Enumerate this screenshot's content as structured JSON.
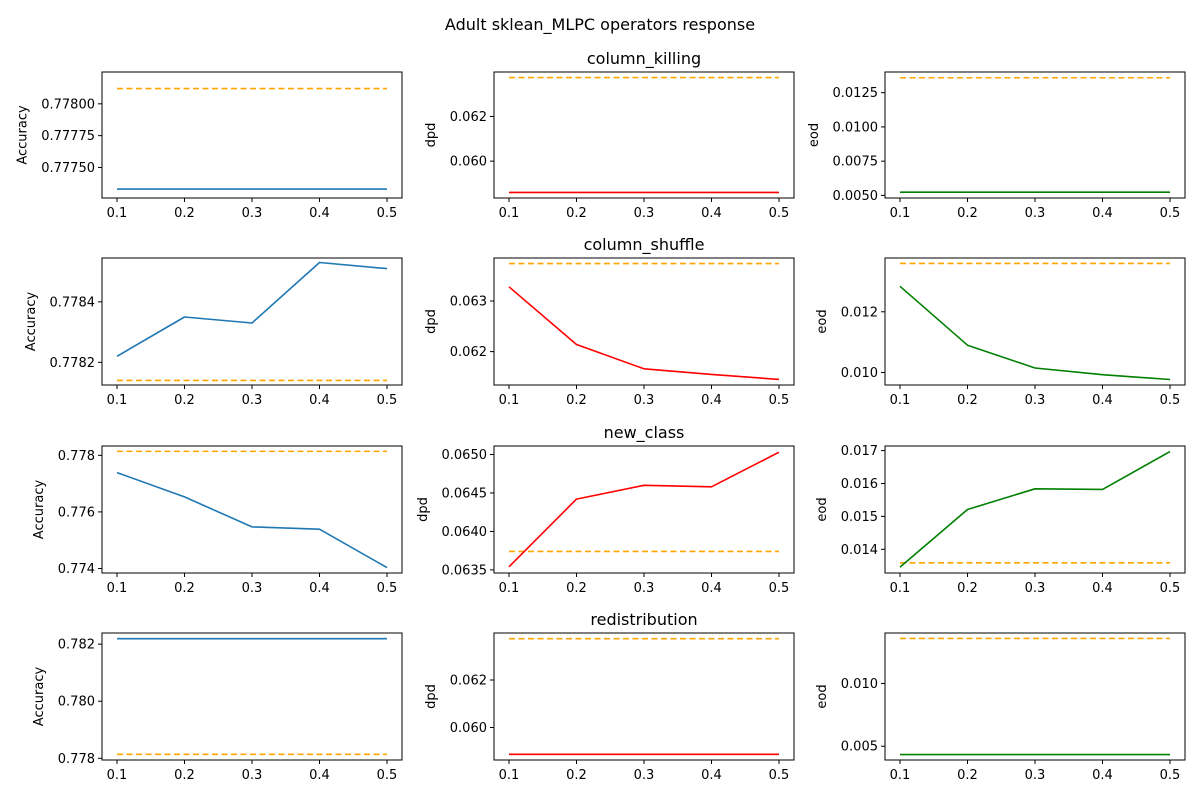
{
  "figure": {
    "title": "Adult sklean_MLPC operators response"
  },
  "colors": {
    "Accuracy": "#1f77b4",
    "dpd": "#ff0000",
    "eod": "#008000",
    "reference": "#ffa500"
  },
  "chart_data": [
    {
      "type": "line",
      "title": "",
      "ylabel": "Accuracy",
      "x": [
        0.1,
        0.2,
        0.3,
        0.4,
        0.5
      ],
      "values": [
        0.77733,
        0.77733,
        0.77733,
        0.77733,
        0.77733
      ],
      "refs": [
        0.77812
      ],
      "ylim": [
        0.77726,
        0.77825
      ],
      "yticks": [
        0.7775,
        0.77775,
        0.778
      ],
      "ytick_labels": [
        "0.77750",
        "0.77775",
        "0.77800"
      ],
      "xticks": [
        "0.1",
        "0.2",
        "0.3",
        "0.4",
        "0.5"
      ]
    },
    {
      "type": "line",
      "title": "column_killing",
      "ylabel": "dpd",
      "x": [
        0.1,
        0.2,
        0.3,
        0.4,
        0.5
      ],
      "values": [
        0.0586,
        0.0586,
        0.0586,
        0.0586,
        0.0586
      ],
      "refs": [
        0.06374
      ],
      "ylim": [
        0.05835,
        0.06399
      ],
      "yticks": [
        0.06,
        0.062
      ],
      "ytick_labels": [
        "0.060",
        "0.062"
      ],
      "xticks": [
        "0.1",
        "0.2",
        "0.3",
        "0.4",
        "0.5"
      ]
    },
    {
      "type": "line",
      "title": "",
      "ylabel": "eod",
      "x": [
        0.1,
        0.2,
        0.3,
        0.4,
        0.5
      ],
      "values": [
        0.00523,
        0.00523,
        0.00523,
        0.00523,
        0.00523
      ],
      "refs": [
        0.01359
      ],
      "ylim": [
        0.00481,
        0.01401
      ],
      "yticks": [
        0.005,
        0.0075,
        0.01,
        0.0125
      ],
      "ytick_labels": [
        "0.0050",
        "0.0075",
        "0.0100",
        "0.0125"
      ],
      "xticks": [
        "0.1",
        "0.2",
        "0.3",
        "0.4",
        "0.5"
      ]
    },
    {
      "type": "line",
      "title": "",
      "ylabel": "Accuracy",
      "x": [
        0.1,
        0.2,
        0.3,
        0.4,
        0.5
      ],
      "values": [
        0.77822,
        0.77835,
        0.77833,
        0.77853,
        0.77851
      ],
      "refs": [
        0.77814
      ],
      "ylim": [
        0.778125,
        0.778545
      ],
      "yticks": [
        0.7782,
        0.7784
      ],
      "ytick_labels": [
        "0.7782",
        "0.7784"
      ],
      "xticks": [
        "0.1",
        "0.2",
        "0.3",
        "0.4",
        "0.5"
      ]
    },
    {
      "type": "line",
      "title": "column_shuffle",
      "ylabel": "dpd",
      "x": [
        0.1,
        0.2,
        0.3,
        0.4,
        0.5
      ],
      "values": [
        0.06328,
        0.06214,
        0.06166,
        0.06155,
        0.06145
      ],
      "refs": [
        0.06374
      ],
      "ylim": [
        0.06134,
        0.06385
      ],
      "yticks": [
        0.062,
        0.063
      ],
      "ytick_labels": [
        "0.062",
        "0.063"
      ],
      "xticks": [
        "0.1",
        "0.2",
        "0.3",
        "0.4",
        "0.5"
      ]
    },
    {
      "type": "line",
      "title": "",
      "ylabel": "eod",
      "x": [
        0.1,
        0.2,
        0.3,
        0.4,
        0.5
      ],
      "values": [
        0.01284,
        0.0109,
        0.01015,
        0.00993,
        0.00977
      ],
      "refs": [
        0.01359
      ],
      "ylim": [
        0.00959,
        0.01377
      ],
      "yticks": [
        0.01,
        0.012
      ],
      "ytick_labels": [
        "0.010",
        "0.012"
      ],
      "xticks": [
        "0.1",
        "0.2",
        "0.3",
        "0.4",
        "0.5"
      ]
    },
    {
      "type": "line",
      "title": "",
      "ylabel": "Accuracy",
      "x": [
        0.1,
        0.2,
        0.3,
        0.4,
        0.5
      ],
      "values": [
        0.77739,
        0.77653,
        0.77547,
        0.77539,
        0.77403
      ],
      "refs": [
        0.77814
      ],
      "ylim": [
        0.77384,
        0.77833
      ],
      "yticks": [
        0.774,
        0.776,
        0.778
      ],
      "ytick_labels": [
        "0.774",
        "0.776",
        "0.778"
      ],
      "xticks": [
        "0.1",
        "0.2",
        "0.3",
        "0.4",
        "0.5"
      ]
    },
    {
      "type": "line",
      "title": "new_class",
      "ylabel": "dpd",
      "x": [
        0.1,
        0.2,
        0.3,
        0.4,
        0.5
      ],
      "values": [
        0.06354,
        0.06442,
        0.0646,
        0.06458,
        0.06503
      ],
      "refs": [
        0.06374
      ],
      "ylim": [
        0.06346,
        0.06511
      ],
      "yticks": [
        0.0635,
        0.064,
        0.0645,
        0.065
      ],
      "ytick_labels": [
        "0.0635",
        "0.0640",
        "0.0645",
        "0.0650"
      ],
      "xticks": [
        "0.1",
        "0.2",
        "0.3",
        "0.4",
        "0.5"
      ]
    },
    {
      "type": "line",
      "title": "",
      "ylabel": "eod",
      "x": [
        0.1,
        0.2,
        0.3,
        0.4,
        0.5
      ],
      "values": [
        0.01346,
        0.01521,
        0.01584,
        0.01582,
        0.01697
      ],
      "refs": [
        0.01359
      ],
      "ylim": [
        0.01328,
        0.01714
      ],
      "yticks": [
        0.014,
        0.015,
        0.016,
        0.017
      ],
      "ytick_labels": [
        "0.014",
        "0.015",
        "0.016",
        "0.017"
      ],
      "xticks": [
        "0.1",
        "0.2",
        "0.3",
        "0.4",
        "0.5"
      ]
    },
    {
      "type": "line",
      "title": "",
      "ylabel": "Accuracy",
      "x": [
        0.1,
        0.2,
        0.3,
        0.4,
        0.5
      ],
      "values": [
        0.78219,
        0.78219,
        0.78219,
        0.78219,
        0.78219
      ],
      "refs": [
        0.77814
      ],
      "ylim": [
        0.77794,
        0.78239
      ],
      "yticks": [
        0.778,
        0.78,
        0.782
      ],
      "ytick_labels": [
        "0.778",
        "0.780",
        "0.782"
      ],
      "xticks": [
        "0.1",
        "0.2",
        "0.3",
        "0.4",
        "0.5"
      ]
    },
    {
      "type": "line",
      "title": "redistribution",
      "ylabel": "dpd",
      "x": [
        0.1,
        0.2,
        0.3,
        0.4,
        0.5
      ],
      "values": [
        0.05887,
        0.05887,
        0.05887,
        0.05887,
        0.05887
      ],
      "refs": [
        0.06374
      ],
      "ylim": [
        0.05863,
        0.06398
      ],
      "yticks": [
        0.06,
        0.062
      ],
      "ytick_labels": [
        "0.060",
        "0.062"
      ],
      "xticks": [
        "0.1",
        "0.2",
        "0.3",
        "0.4",
        "0.5"
      ]
    },
    {
      "type": "line",
      "title": "",
      "ylabel": "eod",
      "x": [
        0.1,
        0.2,
        0.3,
        0.4,
        0.5
      ],
      "values": [
        0.00433,
        0.00433,
        0.00433,
        0.00433,
        0.00433
      ],
      "refs": [
        0.01359
      ],
      "ylim": [
        0.0039,
        0.01402
      ],
      "yticks": [
        0.005,
        0.01
      ],
      "ytick_labels": [
        "0.005",
        "0.010"
      ],
      "xticks": [
        "0.1",
        "0.2",
        "0.3",
        "0.4",
        "0.5"
      ]
    }
  ]
}
